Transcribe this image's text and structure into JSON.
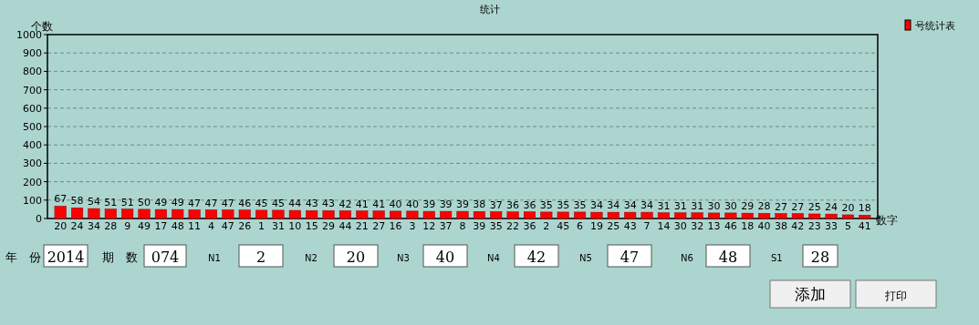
{
  "chart_data": {
    "type": "bar",
    "title": "统计",
    "ylabel": "个数",
    "xlabel": "数字",
    "categories": [
      "20",
      "24",
      "34",
      "28",
      "9",
      "49",
      "17",
      "48",
      "11",
      "4",
      "47",
      "26",
      "1",
      "31",
      "10",
      "15",
      "29",
      "44",
      "21",
      "27",
      "16",
      "3",
      "12",
      "37",
      "8",
      "39",
      "35",
      "22",
      "36",
      "2",
      "45",
      "6",
      "19",
      "25",
      "43",
      "7",
      "14",
      "30",
      "32",
      "13",
      "46",
      "18",
      "40",
      "38",
      "42",
      "23",
      "33",
      "5",
      "41"
    ],
    "series": [
      {
        "name": "号统计表",
        "color": "#ff0000",
        "values": [
          67,
          58,
          54,
          51,
          51,
          50,
          49,
          49,
          47,
          47,
          47,
          46,
          45,
          45,
          44,
          43,
          43,
          42,
          41,
          41,
          40,
          40,
          39,
          39,
          39,
          38,
          37,
          36,
          36,
          35,
          35,
          35,
          34,
          34,
          34,
          34,
          31,
          31,
          31,
          30,
          30,
          29,
          28,
          27,
          27,
          25,
          24,
          20,
          18
        ]
      }
    ],
    "ylim": [
      0,
      1000
    ],
    "yticks": [
      0,
      100,
      200,
      300,
      400,
      500,
      600,
      700,
      800,
      900,
      1000
    ],
    "grid": "y",
    "legend": "top right",
    "data_labels": true,
    "annotations": [
      "年　份",
      "2014",
      "期　数",
      "074",
      "N1",
      "2",
      "N2",
      "20",
      "N3",
      "40",
      "N4",
      "42",
      "N5",
      "47",
      "N6",
      "48",
      "S1",
      "28",
      "添加",
      "打印"
    ]
  }
}
